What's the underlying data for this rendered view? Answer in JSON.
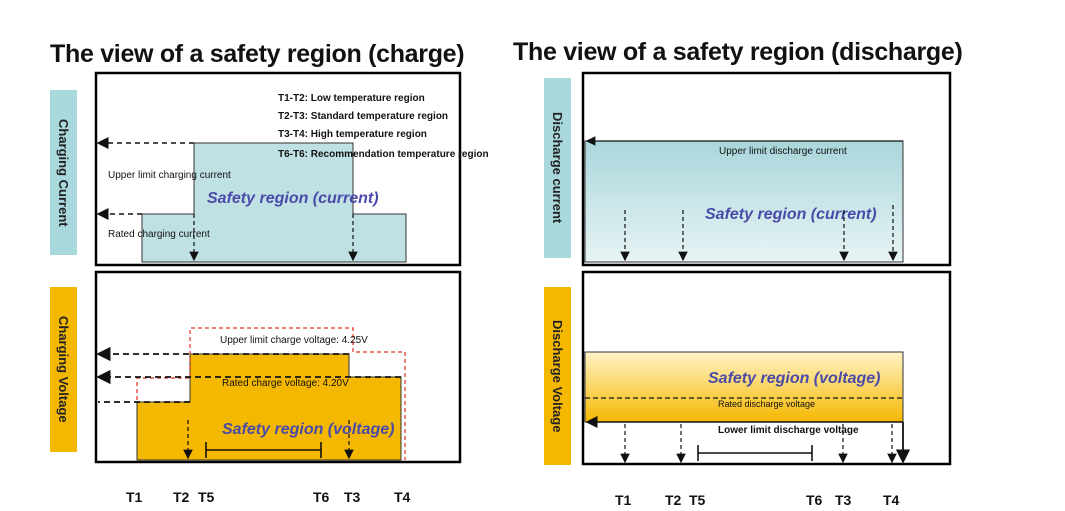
{
  "charge": {
    "title": "The view of a safety region (charge)",
    "current_axis_label": "Charging Current",
    "voltage_axis_label": "Charging Voltage",
    "legend": [
      "T1-T2: Low temperature region",
      "T2-T3: Standard temperature region",
      "T3-T4: High temperature region",
      "T6-T6: Recommendation temperature region"
    ],
    "upper_limit_current": "Upper limit charging current",
    "rated_current": "Rated charging current",
    "current_region": "Safety region (current)",
    "upper_limit_voltage": "Upper limit  charge voltage: 4.25V",
    "rated_voltage": "Rated charge voltage: 4.20V",
    "voltage_region": "Safety region  (voltage)",
    "ticks": [
      "T1",
      "T2",
      "T5",
      "T6",
      "T3",
      "T4"
    ]
  },
  "discharge": {
    "title": "The view of a safety region (discharge)",
    "current_axis_label": "Discharge current",
    "voltage_axis_label": "Discharge Voltage",
    "upper_limit_current": "Upper limit discharge current",
    "current_region": "Safety region (current)",
    "voltage_region": "Safety region (voltage)",
    "rated_voltage": "Rated discharge voltage",
    "lower_limit_voltage": "Lower limit  discharge voltage",
    "ticks": [
      "T1",
      "T2",
      "T5",
      "T6",
      "T3",
      "T4"
    ]
  },
  "colors": {
    "current_fill": "#bfe1e4",
    "voltage_fill": "#f5b800",
    "region_text": "#4a4aa8",
    "upper_limit_dash": "#e03020"
  }
}
